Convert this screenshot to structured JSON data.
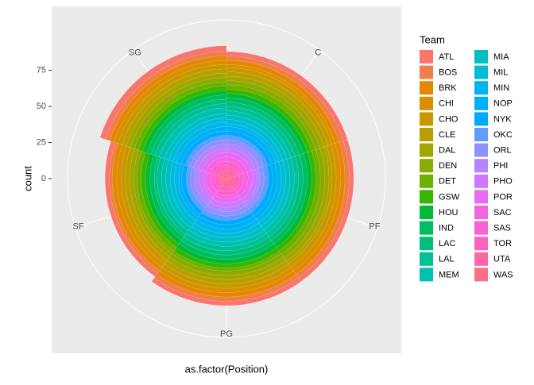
{
  "chart_data": {
    "type": "bar",
    "coord": "polar",
    "x_label": "as.factor(Position)",
    "y_label": "count",
    "legend_title": "Team",
    "categories": [
      "C",
      "PF",
      "PG",
      "SF",
      "SG"
    ],
    "ylim": [
      0,
      110
    ],
    "yticks": [
      0,
      25,
      50,
      75
    ],
    "grid": true,
    "series": [
      {
        "name": "ATL",
        "color": "#F8766D",
        "values": [
          3,
          3,
          3,
          3,
          4
        ]
      },
      {
        "name": "BOS",
        "color": "#EF7F49",
        "values": [
          3,
          3,
          3,
          2,
          3
        ]
      },
      {
        "name": "BRK",
        "color": "#E58700",
        "values": [
          3,
          3,
          3,
          3,
          3
        ]
      },
      {
        "name": "CHI",
        "color": "#D89000",
        "values": [
          2,
          3,
          3,
          3,
          3
        ]
      },
      {
        "name": "CHO",
        "color": "#C99800",
        "values": [
          3,
          3,
          3,
          3,
          3
        ]
      },
      {
        "name": "CLE",
        "color": "#B79F00",
        "values": [
          3,
          2,
          3,
          3,
          3
        ]
      },
      {
        "name": "DAL",
        "color": "#A3A500",
        "values": [
          3,
          3,
          3,
          3,
          3
        ]
      },
      {
        "name": "DEN",
        "color": "#8BAB00",
        "values": [
          3,
          3,
          3,
          2,
          3
        ]
      },
      {
        "name": "DET",
        "color": "#6BB100",
        "values": [
          3,
          3,
          2,
          3,
          3
        ]
      },
      {
        "name": "GSW",
        "color": "#39B600",
        "values": [
          3,
          3,
          3,
          3,
          3
        ]
      },
      {
        "name": "HOU",
        "color": "#00BA38",
        "values": [
          3,
          3,
          3,
          3,
          3
        ]
      },
      {
        "name": "IND",
        "color": "#00BD5F",
        "values": [
          3,
          3,
          3,
          3,
          3
        ]
      },
      {
        "name": "LAC",
        "color": "#00BF7D",
        "values": [
          3,
          3,
          3,
          2,
          3
        ]
      },
      {
        "name": "LAL",
        "color": "#00C097",
        "values": [
          3,
          3,
          3,
          3,
          3
        ]
      },
      {
        "name": "MEM",
        "color": "#00C1AF",
        "values": [
          3,
          3,
          3,
          3,
          4
        ]
      },
      {
        "name": "MIA",
        "color": "#00BFC4",
        "values": [
          3,
          3,
          3,
          3,
          3
        ]
      },
      {
        "name": "MIL",
        "color": "#00BCD8",
        "values": [
          3,
          3,
          3,
          3,
          3
        ]
      },
      {
        "name": "MIN",
        "color": "#00B6EB",
        "values": [
          2,
          3,
          3,
          3,
          3
        ]
      },
      {
        "name": "NOP",
        "color": "#00B0F6",
        "values": [
          3,
          3,
          3,
          2,
          3
        ]
      },
      {
        "name": "NYK",
        "color": "#00A9FF",
        "values": [
          3,
          3,
          3,
          3,
          3
        ]
      },
      {
        "name": "OKC",
        "color": "#619CFF",
        "values": [
          3,
          3,
          3,
          3,
          3
        ]
      },
      {
        "name": "ORL",
        "color": "#8F91FF",
        "values": [
          3,
          3,
          3,
          3,
          3
        ]
      },
      {
        "name": "PHI",
        "color": "#B385FF",
        "values": [
          3,
          2,
          3,
          3,
          3
        ]
      },
      {
        "name": "PHO",
        "color": "#CF78FF",
        "values": [
          3,
          3,
          3,
          3,
          3
        ]
      },
      {
        "name": "POR",
        "color": "#E76BF3",
        "values": [
          3,
          3,
          3,
          2,
          3
        ]
      },
      {
        "name": "SAC",
        "color": "#F564E3",
        "values": [
          3,
          3,
          2,
          3,
          3
        ]
      },
      {
        "name": "SAS",
        "color": "#FD61D1",
        "values": [
          3,
          3,
          3,
          3,
          3
        ]
      },
      {
        "name": "TOR",
        "color": "#FF62BC",
        "values": [
          3,
          3,
          3,
          3,
          3
        ]
      },
      {
        "name": "UTA",
        "color": "#FF67A4",
        "values": [
          3,
          3,
          3,
          2,
          3
        ]
      },
      {
        "name": "WAS",
        "color": "#FC6E88",
        "values": [
          3,
          3,
          3,
          3,
          3
        ]
      }
    ]
  }
}
